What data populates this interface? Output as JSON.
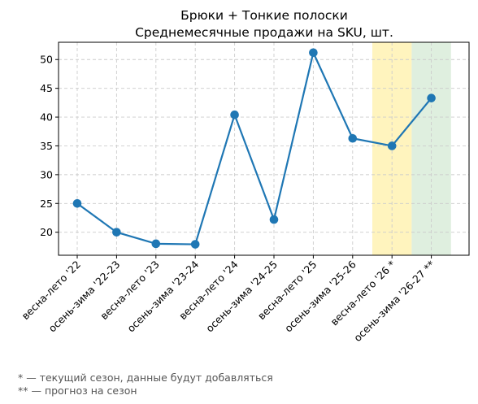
{
  "chart_data": {
    "type": "line",
    "title": "Брюки + Тонкие полоски",
    "subtitle": "Среднемесячные продажи на SKU, шт.",
    "xlabel": "",
    "ylabel": "",
    "categories": [
      "весна-лето '22",
      "осень-зима '22-23",
      "весна-лето '23",
      "осень-зима '23-24",
      "весна-лето '24",
      "осень-зима '24-25",
      "весна-лето '25",
      "осень-зима '25-26",
      "весна-лето '26 *",
      "осень-зима '26-27 **"
    ],
    "series": [
      {
        "values": [
          25.0,
          20.0,
          18.0,
          17.9,
          40.4,
          22.2,
          51.2,
          36.3,
          35.0,
          43.3
        ],
        "color": "#1f77b4"
      }
    ],
    "ylim": [
      16,
      53
    ],
    "yticks": [
      20,
      25,
      30,
      35,
      40,
      45,
      50
    ],
    "grid": true,
    "highlights": [
      {
        "category_index": 8,
        "color": "#fff2b3",
        "meaning": "current season"
      },
      {
        "category_index": 9,
        "color": "#d9ecd9",
        "meaning": "forecast"
      }
    ],
    "notes": [
      "* — текущий сезон, данные будут добавляться",
      "** — прогноз на сезон"
    ]
  }
}
